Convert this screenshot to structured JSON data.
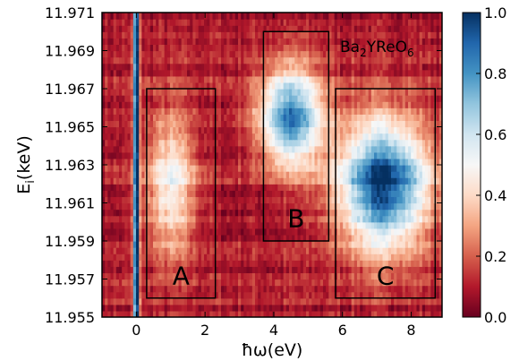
{
  "chart_data": {
    "type": "heatmap",
    "title": "",
    "xlabel": "ħω(eV)",
    "ylabel_main": "E",
    "ylabel_sub": "i",
    "ylabel_tail": "(keV)",
    "xlim": [
      -1.0,
      8.9
    ],
    "ylim": [
      11.955,
      11.971
    ],
    "x_ticks": [
      0,
      2,
      4,
      6,
      8
    ],
    "x_tick_labels": [
      "0",
      "2",
      "4",
      "6",
      "8"
    ],
    "y_ticks": [
      11.955,
      11.957,
      11.959,
      11.961,
      11.963,
      11.965,
      11.967,
      11.969,
      11.971
    ],
    "y_tick_labels": [
      "11.955",
      "11.957",
      "11.959",
      "11.961",
      "11.963",
      "11.965",
      "11.967",
      "11.969",
      "11.971"
    ],
    "colorbar": {
      "min": 0.0,
      "max": 1.0,
      "ticks": [
        0.0,
        0.2,
        0.4,
        0.6,
        0.8,
        1.0
      ],
      "tick_labels": [
        "0.0",
        "0.2",
        "0.4",
        "0.6",
        "0.8",
        "1.0"
      ],
      "colormap": "RdBu",
      "colors": [
        "#67001f",
        "#b2182b",
        "#d6604d",
        "#f4a582",
        "#fddbc7",
        "#f7f7f7",
        "#d1e5f0",
        "#92c5de",
        "#4393c3",
        "#2166ac",
        "#053061"
      ]
    },
    "annotation": {
      "base": "Ba",
      "sub1": "2",
      "mid": "YReO",
      "sub2": "6"
    },
    "regions": [
      {
        "label": "A",
        "x": [
          0.3,
          2.3
        ],
        "y": [
          11.956,
          11.967
        ]
      },
      {
        "label": "B",
        "x": [
          3.7,
          5.6
        ],
        "y": [
          11.959,
          11.97
        ]
      },
      {
        "label": "C",
        "x": [
          5.8,
          8.7
        ],
        "y": [
          11.956,
          11.967
        ]
      }
    ],
    "features": [
      {
        "name": "elastic",
        "x_center": 0.0,
        "x_width": 0.08,
        "y_range": [
          11.955,
          11.971
        ],
        "intensity": 1.0
      },
      {
        "name": "A",
        "x_center": 1.0,
        "x_width": 0.7,
        "y_center": 11.962,
        "y_width": 0.0035,
        "intensity": 0.4
      },
      {
        "name": "B",
        "x_center": 4.5,
        "x_width": 0.9,
        "y_center": 11.9655,
        "y_width": 0.0025,
        "intensity": 0.75
      },
      {
        "name": "C",
        "x_center": 7.2,
        "x_width": 1.3,
        "y_center": 11.962,
        "y_width": 0.0033,
        "intensity": 0.9
      }
    ],
    "background_level": 0.1
  }
}
